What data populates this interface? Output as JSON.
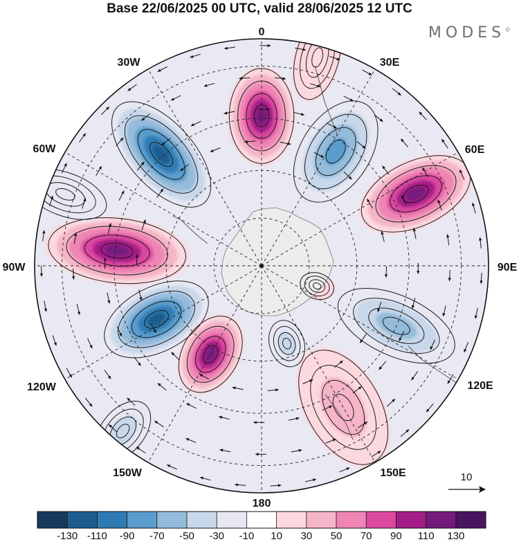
{
  "title": "Base 22/06/2025 00 UTC, valid 28/06/2025 12 UTC",
  "brand": "MODES",
  "brand_mark": "©",
  "map": {
    "projection": "south-polar-stereographic",
    "longitude_labels": [
      "0",
      "30E",
      "60E",
      "90E",
      "120E",
      "150E",
      "180",
      "150W",
      "120W",
      "90W",
      "60W",
      "30W"
    ],
    "reference_vector_label": "10",
    "anomaly_cells": [
      {
        "lon": 33,
        "colat": 0.6,
        "value": -90,
        "ra": 0.26,
        "rb": 0.16
      },
      {
        "lon": 0,
        "colat": 0.66,
        "value": 130,
        "ra": 0.22,
        "rb": 0.15
      },
      {
        "lon": -42,
        "colat": 0.66,
        "value": -130,
        "ra": 0.3,
        "rb": 0.15
      },
      {
        "lon": -84,
        "colat": 0.64,
        "value": 130,
        "ra": 0.32,
        "rb": 0.15
      },
      {
        "lon": -117,
        "colat": 0.52,
        "value": -130,
        "ra": 0.26,
        "rb": 0.15
      },
      {
        "lon": -150,
        "colat": 0.45,
        "value": 130,
        "ra": 0.19,
        "rb": 0.13
      },
      {
        "lon": 162,
        "colat": 0.36,
        "value": -50,
        "ra": 0.11,
        "rb": 0.08
      },
      {
        "lon": 65,
        "colat": 0.75,
        "value": 130,
        "ra": 0.27,
        "rb": 0.15
      },
      {
        "lon": 114,
        "colat": 0.65,
        "value": -70,
        "ra": 0.29,
        "rb": 0.14
      },
      {
        "lon": 150,
        "colat": 0.72,
        "value": 50,
        "ra": 0.29,
        "rb": 0.17
      },
      {
        "lon": -140,
        "colat": 0.95,
        "value": -50,
        "ra": 0.16,
        "rb": 0.1
      },
      {
        "lon": 110,
        "colat": 0.26,
        "value": 30,
        "ra": 0.08,
        "rb": 0.06
      },
      {
        "lon": -70,
        "colat": 0.92,
        "value": -30,
        "ra": 0.2,
        "rb": 0.1
      },
      {
        "lon": 15,
        "colat": 0.95,
        "value": 30,
        "ra": 0.2,
        "rb": 0.1
      }
    ]
  },
  "colorbar": {
    "tick_labels": [
      "-130",
      "-110",
      "-90",
      "-70",
      "-50",
      "-30",
      "-10",
      "10",
      "30",
      "50",
      "70",
      "90",
      "110",
      "130"
    ],
    "colors": [
      "#173a5c",
      "#1c5d8e",
      "#2e7bb4",
      "#5a9ccc",
      "#95bbdb",
      "#c8d7ea",
      "#e8e8f3",
      "#ffffff",
      "#fbd9df",
      "#f5b4c7",
      "#ef85b4",
      "#db4a9f",
      "#a31e86",
      "#741a7c",
      "#4a1360"
    ]
  }
}
